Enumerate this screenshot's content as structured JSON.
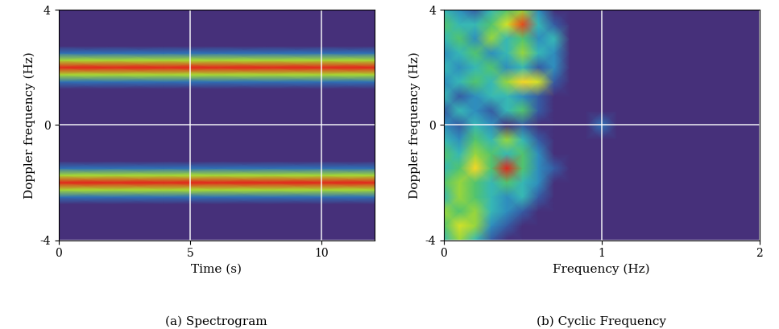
{
  "chart_data": [
    {
      "type": "heatmap",
      "title": "(a) Spectrogram",
      "xlabel": "Time (s)",
      "ylabel": "Doppler frequency (Hz)",
      "xlim": [
        0,
        12
      ],
      "ylim": [
        -4,
        4
      ],
      "xticks": [
        0,
        5,
        10
      ],
      "yticks": [
        -4,
        0,
        4
      ],
      "grid": true,
      "x": [
        0,
        2,
        4,
        6,
        8,
        10,
        12
      ],
      "y": [
        -4,
        -3.75,
        -3.5,
        -3.25,
        -3,
        -2.75,
        -2.5,
        -2.25,
        -2,
        -1.75,
        -1.5,
        -1.25,
        -1,
        -0.75,
        -0.5,
        -0.25,
        0,
        0.25,
        0.5,
        0.75,
        1,
        1.25,
        1.5,
        1.75,
        2,
        2.25,
        2.5,
        2.75,
        3,
        3.25,
        3.5,
        3.75,
        4
      ],
      "cells": [
        [
          0,
          0,
          0,
          0,
          0,
          0,
          0
        ],
        [
          0,
          0,
          0,
          0,
          0,
          0,
          0
        ],
        [
          0,
          0,
          0,
          0,
          0,
          0,
          0
        ],
        [
          0,
          0,
          0,
          0,
          0,
          0,
          0
        ],
        [
          0,
          0,
          0,
          0,
          0,
          0,
          0
        ],
        [
          0,
          0,
          0,
          0,
          0,
          0,
          0
        ],
        [
          0.15,
          0.15,
          0.15,
          0.15,
          0.15,
          0.15,
          0.15
        ],
        [
          0.55,
          0.55,
          0.55,
          0.55,
          0.55,
          0.55,
          0.55
        ],
        [
          1,
          1,
          1,
          1,
          1,
          1,
          1
        ],
        [
          0.55,
          0.55,
          0.55,
          0.55,
          0.55,
          0.55,
          0.55
        ],
        [
          0.15,
          0.15,
          0.15,
          0.15,
          0.15,
          0.15,
          0.15
        ],
        [
          0,
          0,
          0,
          0,
          0,
          0,
          0
        ],
        [
          0,
          0,
          0,
          0,
          0,
          0,
          0
        ],
        [
          0,
          0,
          0,
          0,
          0,
          0,
          0
        ],
        [
          0,
          0,
          0,
          0,
          0,
          0,
          0
        ],
        [
          0,
          0,
          0,
          0,
          0,
          0,
          0
        ],
        [
          0,
          0,
          0,
          0,
          0,
          0,
          0
        ],
        [
          0,
          0,
          0,
          0,
          0,
          0,
          0
        ],
        [
          0,
          0,
          0,
          0,
          0,
          0,
          0
        ],
        [
          0,
          0,
          0,
          0,
          0,
          0,
          0
        ],
        [
          0,
          0,
          0,
          0,
          0,
          0,
          0
        ],
        [
          0,
          0,
          0,
          0,
          0,
          0,
          0
        ],
        [
          0.15,
          0.15,
          0.15,
          0.15,
          0.15,
          0.15,
          0.15
        ],
        [
          0.55,
          0.55,
          0.55,
          0.55,
          0.55,
          0.55,
          0.55
        ],
        [
          1,
          1,
          1,
          1,
          1,
          1,
          1
        ],
        [
          0.55,
          0.55,
          0.55,
          0.55,
          0.55,
          0.55,
          0.55
        ],
        [
          0.15,
          0.15,
          0.15,
          0.15,
          0.15,
          0.15,
          0.15
        ],
        [
          0,
          0,
          0,
          0,
          0,
          0,
          0
        ],
        [
          0,
          0,
          0,
          0,
          0,
          0,
          0
        ],
        [
          0,
          0,
          0,
          0,
          0,
          0,
          0
        ],
        [
          0,
          0,
          0,
          0,
          0,
          0,
          0
        ],
        [
          0,
          0,
          0,
          0,
          0,
          0,
          0
        ],
        [
          0,
          0,
          0,
          0,
          0,
          0,
          0
        ]
      ]
    },
    {
      "type": "heatmap",
      "title": "(b) Cyclic Frequency",
      "xlabel": "Frequency (Hz)",
      "ylabel": "Doppler frequency (Hz)",
      "xlim": [
        0,
        2
      ],
      "ylim": [
        -4,
        4
      ],
      "xticks": [
        0,
        1,
        2
      ],
      "yticks": [
        -4,
        0,
        4
      ],
      "grid": true,
      "x": [
        0,
        0.1,
        0.2,
        0.3,
        0.4,
        0.5,
        0.6,
        0.7,
        0.8,
        0.9,
        1.0,
        1.1,
        1.2,
        1.3,
        1.4,
        1.5,
        1.6,
        1.7,
        1.8,
        1.9,
        2.0
      ],
      "y": [
        -4,
        -3.5,
        -3,
        -2.5,
        -2,
        -1.5,
        -1,
        -0.5,
        0,
        0.5,
        1,
        1.5,
        2,
        2.5,
        3,
        3.5,
        4
      ],
      "cells": [
        [
          0.3,
          0.5,
          0.3,
          0.1,
          0,
          0,
          0,
          0,
          0,
          0,
          0,
          0,
          0,
          0,
          0,
          0,
          0,
          0,
          0,
          0,
          0
        ],
        [
          0.4,
          0.6,
          0.5,
          0.2,
          0.1,
          0,
          0,
          0,
          0,
          0,
          0,
          0,
          0,
          0,
          0,
          0,
          0,
          0,
          0,
          0,
          0
        ],
        [
          0.5,
          0.4,
          0.5,
          0.3,
          0.2,
          0.1,
          0,
          0,
          0,
          0,
          0,
          0,
          0,
          0,
          0,
          0,
          0,
          0,
          0,
          0,
          0
        ],
        [
          0.3,
          0.5,
          0.4,
          0.3,
          0.2,
          0.3,
          0.1,
          0,
          0,
          0,
          0,
          0,
          0,
          0,
          0,
          0,
          0,
          0,
          0,
          0,
          0
        ],
        [
          0.4,
          0.5,
          0.4,
          0.3,
          0.4,
          0.3,
          0.2,
          0,
          0,
          0,
          0,
          0,
          0,
          0,
          0,
          0,
          0,
          0,
          0,
          0,
          0
        ],
        [
          0.3,
          0.4,
          0.7,
          0.4,
          0.95,
          0.4,
          0.2,
          0.1,
          0,
          0,
          0,
          0,
          0,
          0,
          0,
          0,
          0,
          0,
          0,
          0,
          0
        ],
        [
          0.4,
          0.3,
          0.5,
          0.4,
          0.3,
          0.4,
          0.2,
          0,
          0,
          0,
          0,
          0,
          0,
          0,
          0,
          0,
          0,
          0,
          0,
          0,
          0
        ],
        [
          0.3,
          0.2,
          0.4,
          0.3,
          0.5,
          0.3,
          0.1,
          0,
          0,
          0,
          0,
          0,
          0,
          0,
          0,
          0,
          0,
          0,
          0,
          0,
          0
        ],
        [
          0.2,
          0.1,
          0.3,
          0.2,
          0,
          0.1,
          0,
          0,
          0,
          0,
          0.15,
          0,
          0,
          0,
          0,
          0,
          0,
          0,
          0,
          0,
          0
        ],
        [
          0.1,
          0.3,
          0.2,
          0.1,
          0.3,
          0.4,
          0.1,
          0,
          0,
          0,
          0,
          0,
          0,
          0,
          0,
          0,
          0,
          0,
          0,
          0,
          0
        ],
        [
          0.3,
          0.1,
          0.2,
          0.3,
          0.3,
          0.2,
          0.1,
          0,
          0,
          0,
          0,
          0,
          0,
          0,
          0,
          0,
          0,
          0,
          0,
          0,
          0
        ],
        [
          0.2,
          0.3,
          0.4,
          0.3,
          0.5,
          0.7,
          0.6,
          0.1,
          0,
          0,
          0,
          0,
          0,
          0,
          0,
          0,
          0,
          0,
          0,
          0,
          0
        ],
        [
          0.3,
          0.2,
          0.3,
          0.4,
          0.2,
          0.3,
          0.1,
          0.2,
          0,
          0,
          0,
          0,
          0,
          0,
          0,
          0,
          0,
          0,
          0,
          0,
          0
        ],
        [
          0.2,
          0.3,
          0.4,
          0.2,
          0.3,
          0.5,
          0.3,
          0.2,
          0,
          0,
          0,
          0,
          0,
          0,
          0,
          0,
          0,
          0,
          0,
          0,
          0
        ],
        [
          0.3,
          0.4,
          0.2,
          0.5,
          0.3,
          0.4,
          0.2,
          0.3,
          0,
          0,
          0,
          0,
          0,
          0,
          0,
          0,
          0,
          0,
          0,
          0,
          0
        ],
        [
          0.4,
          0.3,
          0.3,
          0.4,
          0.6,
          0.9,
          0.3,
          0.1,
          0,
          0,
          0,
          0,
          0,
          0,
          0,
          0,
          0,
          0,
          0,
          0,
          0
        ],
        [
          0.3,
          0.2,
          0.1,
          0.3,
          0.4,
          0.5,
          0.2,
          0,
          0,
          0,
          0,
          0,
          0,
          0,
          0,
          0,
          0,
          0,
          0,
          0,
          0
        ]
      ]
    }
  ]
}
